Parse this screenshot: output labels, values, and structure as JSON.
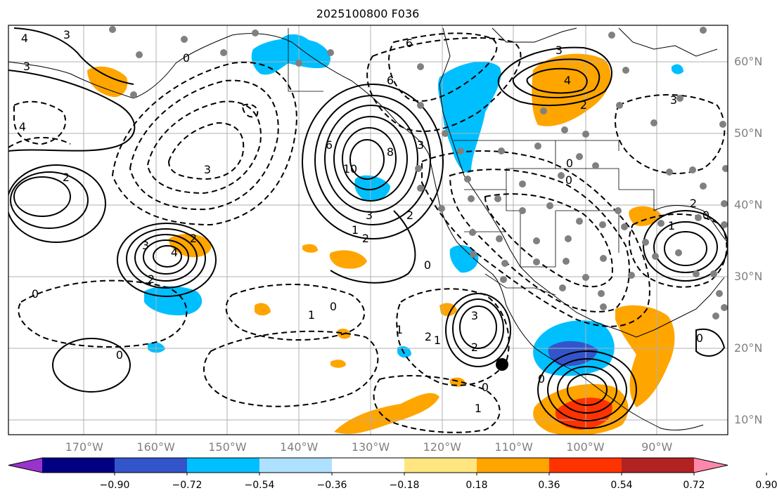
{
  "title": "2025100800 F036",
  "lat_labels": [
    {
      "text": "60°N",
      "lat": 60
    },
    {
      "text": "50°N",
      "lat": 50
    },
    {
      "text": "40°N",
      "lat": 40
    },
    {
      "text": "30°N",
      "lat": 30
    },
    {
      "text": "20°N",
      "lat": 20
    },
    {
      "text": "10°N",
      "lat": 10
    }
  ],
  "lon_labels": [
    {
      "text": "170°W",
      "lon": -170
    },
    {
      "text": "160°W",
      "lon": -160
    },
    {
      "text": "150°W",
      "lon": -150
    },
    {
      "text": "140°W",
      "lon": -140
    },
    {
      "text": "130°W",
      "lon": -130
    },
    {
      "text": "120°W",
      "lon": -120
    },
    {
      "text": "110°W",
      "lon": -110
    },
    {
      "text": "100°W",
      "lon": -100
    },
    {
      "text": "90°W",
      "lon": -90
    }
  ],
  "colorbar": {
    "colors": [
      "#9933cc",
      "#000080",
      "#3355cc",
      "#00bfff",
      "#aee0ff",
      "#ffffff",
      "#ffe680",
      "#ffa500",
      "#ff3300",
      "#b22222",
      "#ff88aa"
    ],
    "tick_labels": [
      "−0.90",
      "−0.72",
      "−0.54",
      "−0.36",
      "−0.18",
      "0.18",
      "0.36",
      "0.54",
      "0.72",
      "0.90"
    ]
  },
  "contour_labels": [
    "3",
    "4",
    "3",
    "4",
    "2",
    "3",
    "2",
    "0",
    "6",
    "8",
    "10",
    "6",
    "3",
    "2",
    "1",
    "2",
    "3",
    "0",
    "4",
    "3",
    "2",
    "0",
    "3",
    "1",
    "0",
    "1",
    "2",
    "1",
    "0",
    "0",
    "0",
    "1",
    "2",
    "3",
    "2",
    "0",
    "0",
    "6",
    "4",
    "3",
    "0",
    "0",
    "1",
    "2"
  ]
}
